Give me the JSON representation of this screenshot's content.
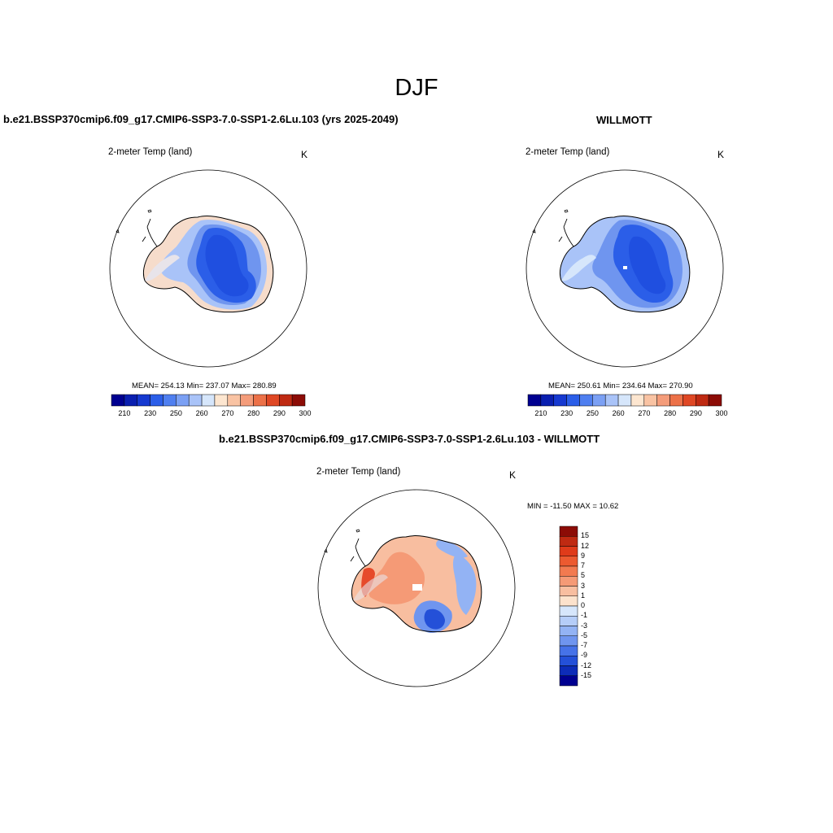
{
  "figure": {
    "season_title": "DJF"
  },
  "panels": {
    "model": {
      "title": "b.e21.BSSP370cmip6.f09_g17.CMIP6-SSP3-7.0-SSP1-2.6Lu.103 (yrs 2025-2049)",
      "variable": "2-meter Temp (land)",
      "units": "K",
      "stats": "MEAN= 254.13  Min= 237.07  Max= 280.89"
    },
    "obs": {
      "title": "WILLMOTT",
      "variable": "2-meter Temp (land)",
      "units": "K",
      "stats": "MEAN= 250.61  Min= 234.64  Max= 270.90"
    },
    "diff": {
      "title": "b.e21.BSSP370cmip6.f09_g17.CMIP6-SSP3-7.0-SSP1-2.6Lu.103 - WILLMOTT",
      "variable": "2-meter Temp (land)",
      "units": "K",
      "stats": "MIN = -11.50 MAX =  10.62"
    }
  },
  "colorbars": {
    "abs": {
      "colors": [
        "#000090",
        "#0a1fb0",
        "#1639d0",
        "#2b5ee8",
        "#4f7ff0",
        "#7ba0f4",
        "#a9c3f8",
        "#d6e6fb",
        "#fde6d0",
        "#f9c3a3",
        "#f49c7a",
        "#ec7148",
        "#df4724",
        "#bf2a12",
        "#8c0c06"
      ],
      "tick_labels": [
        "210",
        "230",
        "250",
        "260",
        "270",
        "280",
        "290",
        "300"
      ]
    },
    "diff": {
      "colors_top_to_bottom": [
        "#8c0c06",
        "#bf2a12",
        "#df3b1a",
        "#ec5a30",
        "#f27a50",
        "#f59a76",
        "#f8bea0",
        "#fce2cc",
        "#d6e6fb",
        "#b5cdf8",
        "#93b3f4",
        "#6f95ef",
        "#4672e8",
        "#2450d8",
        "#0d2cb8",
        "#000090"
      ],
      "tick_labels": [
        "15",
        "12",
        "9",
        "7",
        "5",
        "3",
        "1",
        "0",
        "-1",
        "-3",
        "-5",
        "-7",
        "-9",
        "-12",
        "-15"
      ]
    }
  },
  "map_colors": {
    "abs_model": {
      "coast": "#f6dccb",
      "light": "#a9c3f8",
      "mid": "#6f95ef",
      "deep": "#2b5ee8"
    },
    "abs_obs": {
      "coast": "#a9c3f8",
      "light": "#a9c3f8",
      "mid": "#6f95ef",
      "deep": "#2b5ee8"
    },
    "diff": {
      "warm": "#f8bea0",
      "warm2": "#f59a76",
      "cool": "#93b3f4",
      "deep": "#2450d8",
      "peninsula": "#e64a2a"
    }
  }
}
